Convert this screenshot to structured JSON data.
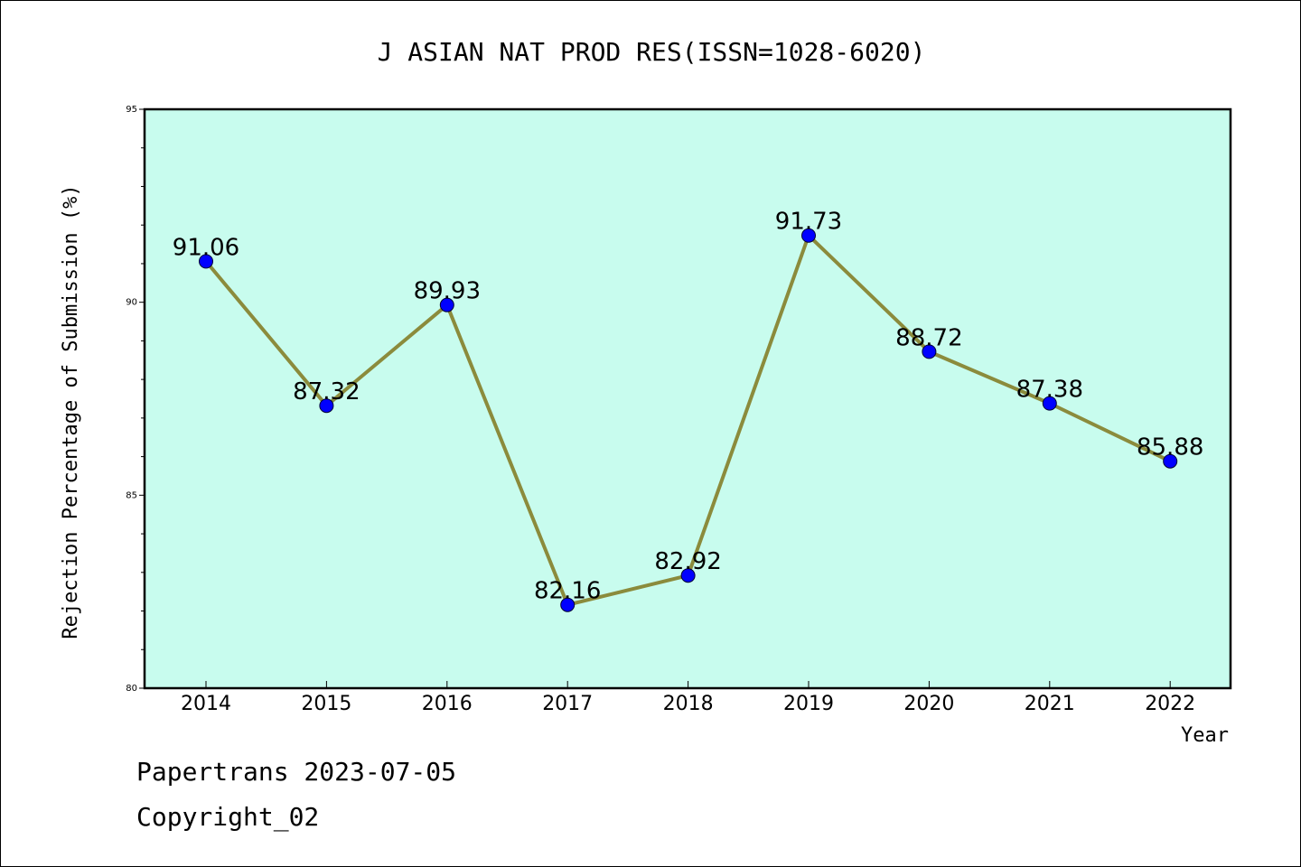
{
  "chart_data": {
    "type": "line",
    "title": "J ASIAN NAT PROD RES(ISSN=1028-6020)",
    "xlabel": "Year",
    "ylabel": "Rejection Percentage of Submission (%)",
    "categories": [
      "2014",
      "2015",
      "2016",
      "2017",
      "2018",
      "2019",
      "2020",
      "2021",
      "2022"
    ],
    "values": [
      91.06,
      87.32,
      89.93,
      82.16,
      82.92,
      91.73,
      88.72,
      87.38,
      85.88
    ],
    "data_labels": [
      "91.06",
      "87.32",
      "89.93",
      "82.16",
      "82.92",
      "91.73",
      "88.72",
      "87.38",
      "85.88"
    ],
    "ylim": [
      80,
      95
    ],
    "yticks": [
      "80",
      "85",
      "90",
      "95"
    ],
    "grid": false,
    "legend": "none",
    "colors": {
      "plot_background": "#c8fcee",
      "line": "#8b8b3c",
      "marker": "#0000ff"
    }
  },
  "footer": {
    "line1": "Papertrans 2023-07-05",
    "line2": "Copyright_02"
  }
}
